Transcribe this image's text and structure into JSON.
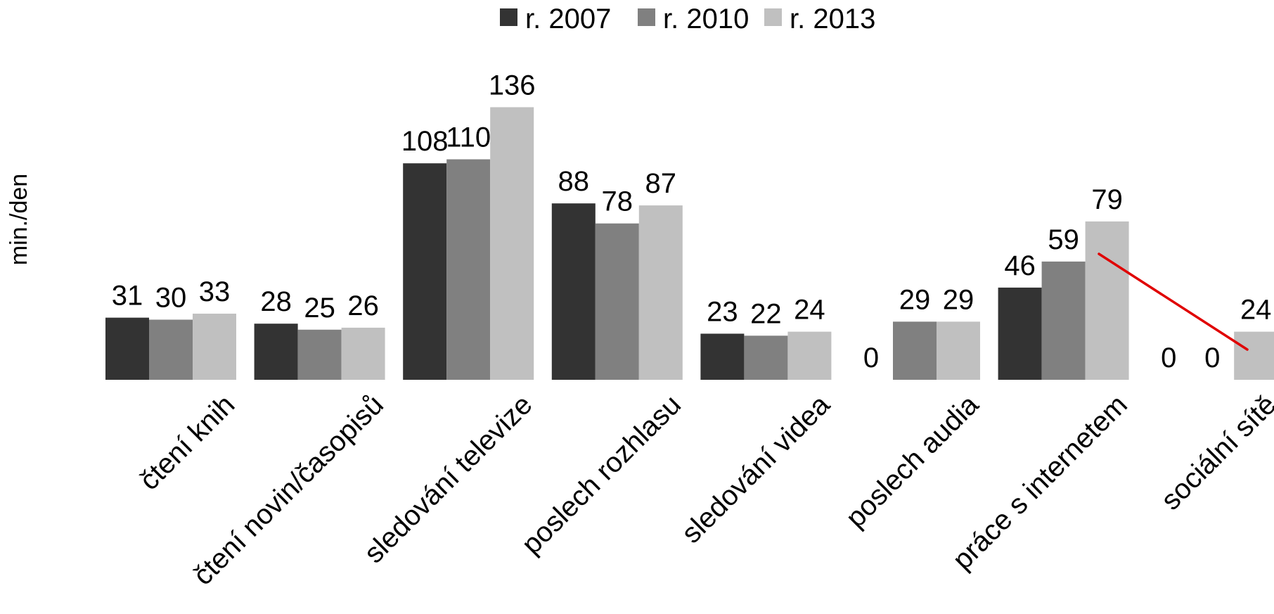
{
  "chart_data": {
    "type": "bar",
    "title": "",
    "ylabel": "min./den",
    "xlabel": "",
    "categories": [
      "čtení knih",
      "čtení novin/časopisů",
      "sledování televize",
      "poslech rozhlasu",
      "sledování videa",
      "poslech audia",
      "práce s internetem",
      "sociální sítě"
    ],
    "series": [
      {
        "name": "r. 2007",
        "color": "#333333",
        "values": [
          31,
          28,
          108,
          88,
          23,
          0,
          46,
          0
        ]
      },
      {
        "name": "r. 2010",
        "color": "#808080",
        "values": [
          30,
          25,
          110,
          78,
          22,
          29,
          59,
          0
        ]
      },
      {
        "name": "r. 2013",
        "color": "#c0c0c0",
        "values": [
          33,
          26,
          136,
          87,
          24,
          29,
          79,
          24
        ]
      }
    ],
    "ylim": [
      0,
      150
    ],
    "grid": false,
    "legend": "top-center",
    "annotation_line_color": "#e00000"
  }
}
